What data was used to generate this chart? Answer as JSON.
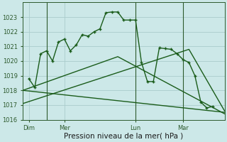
{
  "xlabel": "Pression niveau de la mer( hPa )",
  "bg_color": "#cce8e8",
  "grid_color": "#aacccc",
  "line_color": "#1a5c1a",
  "ylim": [
    1016,
    1024.0
  ],
  "yticks": [
    1016,
    1017,
    1018,
    1019,
    1020,
    1021,
    1022,
    1023
  ],
  "xtick_labels": [
    "Dim",
    "Mer",
    "Lun",
    "Mar"
  ],
  "xtick_positions": [
    0.5,
    3.5,
    9.5,
    13.5
  ],
  "xlim": [
    0,
    17
  ],
  "series": [
    {
      "x": [
        0.5,
        1,
        1.5,
        2,
        2.5,
        3,
        3.5,
        4,
        4.5,
        5,
        5.5,
        6,
        6.5,
        7,
        7.5,
        8,
        8.5,
        9,
        9.5,
        10,
        10.5,
        11,
        11.5,
        12,
        12.5,
        13,
        13.5,
        14,
        14.5,
        15,
        15.5,
        16
      ],
      "y": [
        1018.8,
        1018.2,
        1020.5,
        1020.7,
        1020.0,
        1021.3,
        1021.5,
        1020.7,
        1021.1,
        1021.8,
        1021.7,
        1022.0,
        1022.2,
        1023.3,
        1023.35,
        1023.35,
        1022.8,
        1022.8,
        1022.8,
        1019.9,
        1018.6,
        1018.6,
        1020.9,
        1020.85,
        1020.8,
        1020.5,
        1020.1,
        1019.9,
        1019.0,
        1017.2,
        1016.8,
        1016.9
      ],
      "marker": "+"
    },
    {
      "x": [
        0,
        17
      ],
      "y": [
        1018.0,
        1016.5
      ],
      "marker": null
    },
    {
      "x": [
        0,
        8,
        17
      ],
      "y": [
        1018.0,
        1020.3,
        1016.4
      ],
      "marker": null
    },
    {
      "x": [
        0,
        14,
        17
      ],
      "y": [
        1017.1,
        1020.8,
        1016.6
      ],
      "marker": null
    }
  ],
  "vlines": [
    2,
    9.5,
    13.5
  ],
  "vline_color": "#2d5a2d",
  "tick_fontsize": 6,
  "xlabel_fontsize": 7.5
}
